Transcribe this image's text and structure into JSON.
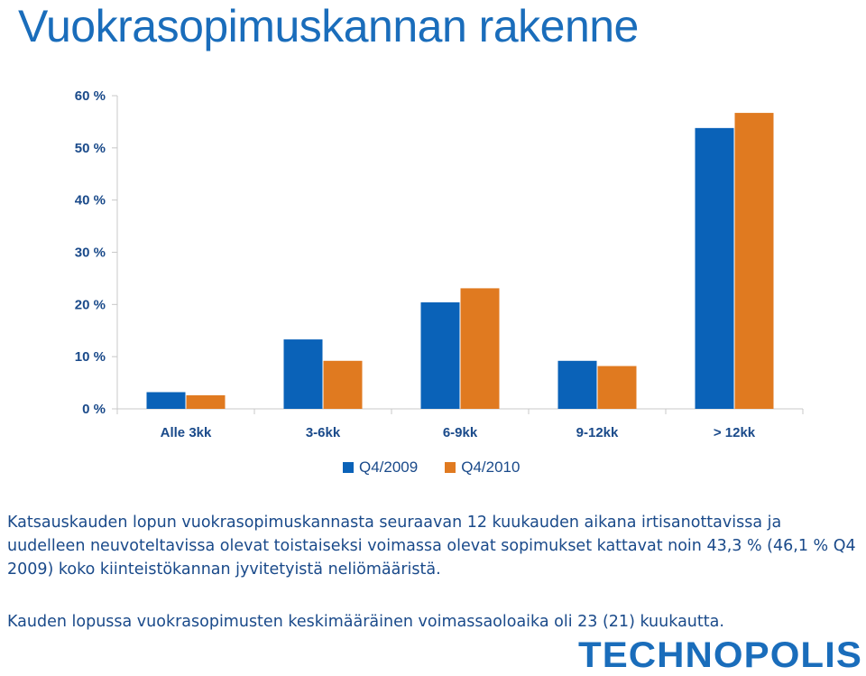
{
  "title": "Vuokrasopimuskannan rakenne",
  "chart_data": {
    "type": "bar",
    "categories": [
      "Alle 3kk",
      "3-6kk",
      "6-9kk",
      "9-12kk",
      "> 12kk"
    ],
    "series": [
      {
        "name": "Q4/2009",
        "values": [
          3.2,
          13.3,
          20.4,
          9.2,
          53.8
        ],
        "color": "#0a62b8"
      },
      {
        "name": "Q4/2010",
        "values": [
          2.6,
          9.2,
          23.1,
          8.2,
          56.7
        ],
        "color": "#e07a20"
      }
    ],
    "ylim": [
      0,
      60
    ],
    "yticks": [
      "0 %",
      "10 %",
      "20 %",
      "30 %",
      "40 %",
      "50 %",
      "60 %"
    ],
    "ytick_values": [
      0,
      10,
      20,
      30,
      40,
      50,
      60
    ],
    "grid": false,
    "legend": "bottom"
  },
  "legend": {
    "q2009": "Q4/2009",
    "q2010": "Q4/2010"
  },
  "text": {
    "paragraph1": "Katsauskauden lopun vuokrasopimuskannasta seuraavan 12 kuukauden aikana irtisanottavissa ja uudelleen neuvoteltavissa olevat toistaiseksi voimassa olevat sopimukset kattavat noin 43,3 % (46,1 % Q4 2009) koko kiinteistökannan jyvitetyistä neliömääristä.",
    "paragraph2": "Kauden lopussa vuokrasopimusten keskimääräinen voimassaoloaika oli 23 (21) kuukautta."
  },
  "logo": "TECHNOPOLIS"
}
